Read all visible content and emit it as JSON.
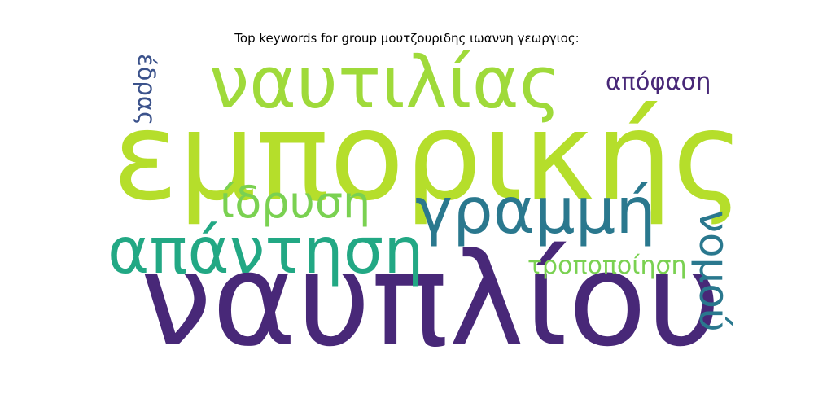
{
  "title": "Top keywords for group μουτζουριδης ιωαννη γεωργιος:",
  "words": [
    {
      "id": "emporikis",
      "text": "εμπορικής",
      "color": "#b5de2b",
      "orientation": "horizontal"
    },
    {
      "id": "nafpliou",
      "text": "ναυπλίου",
      "color": "#482878",
      "orientation": "horizontal"
    },
    {
      "id": "naftilias",
      "text": "ναυτιλίας",
      "color": "#9fda3a",
      "orientation": "horizontal"
    },
    {
      "id": "apantisi",
      "text": "απάντηση",
      "color": "#22a884",
      "orientation": "horizontal"
    },
    {
      "id": "grammi",
      "text": "γραμμή",
      "color": "#2a788e",
      "orientation": "horizontal"
    },
    {
      "id": "idrysi",
      "text": "ίδρυση",
      "color": "#7ad151",
      "orientation": "horizontal"
    },
    {
      "id": "nomou",
      "text": "νομού",
      "color": "#2a788e",
      "orientation": "vertical"
    },
    {
      "id": "apofasi",
      "text": "απόφαση",
      "color": "#482878",
      "orientation": "horizontal"
    },
    {
      "id": "tropopoiisi",
      "text": "τροποποίηση",
      "color": "#7ad151",
      "orientation": "horizontal"
    },
    {
      "id": "edras",
      "text": "έδρας",
      "color": "#3b528b",
      "orientation": "vertical"
    }
  ]
}
